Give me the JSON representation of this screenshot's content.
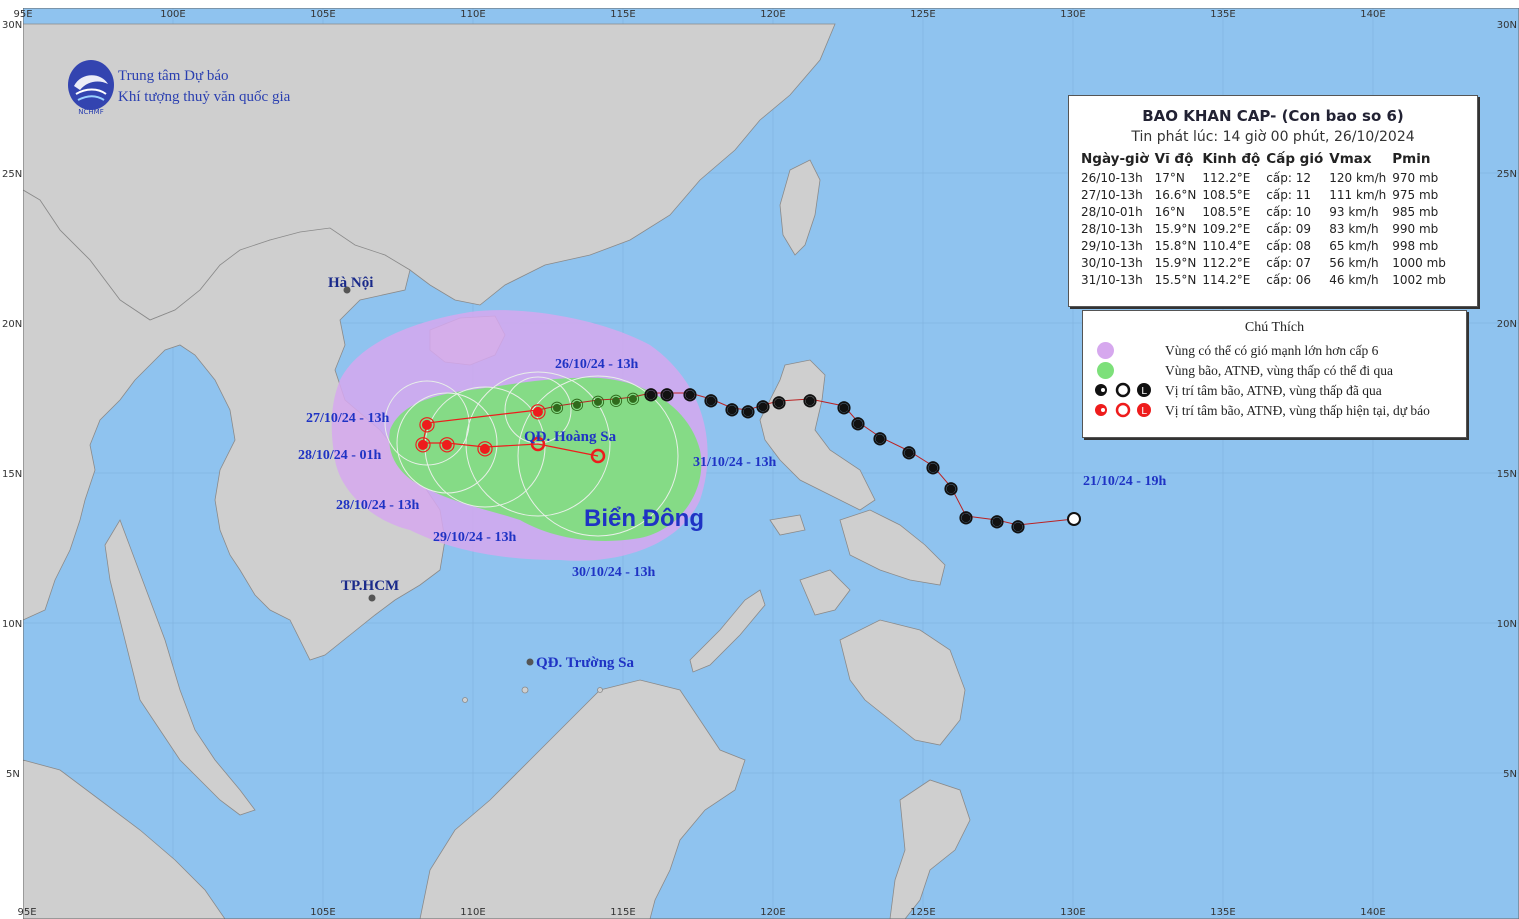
{
  "grid": {
    "lon_labels_top": [
      "95E",
      "100E",
      "105E",
      "110E",
      "115E",
      "120E",
      "125E",
      "130E",
      "135E",
      "140E"
    ],
    "lon_labels_bottom": [
      "95E",
      "105E",
      "110E",
      "115E",
      "120E",
      "125E",
      "130E",
      "135E",
      "140E"
    ],
    "lat_labels": [
      "30N",
      "25N",
      "20N",
      "15N",
      "10N",
      "5N"
    ]
  },
  "agency": {
    "line1": "Trung tâm Dự báo",
    "line2": "Khí tượng thuỷ văn quốc gia",
    "logo_text": "NCHMF"
  },
  "places": {
    "hanoi": "Hà Nội",
    "hcm": "TP.HCM",
    "hoangsa": "QĐ. Hoàng Sa",
    "truongsa": "QĐ. Trường Sa",
    "sea": "Biển Đông"
  },
  "track_labels": {
    "l2610": "26/10/24 - 13h",
    "l2710": "27/10/24 - 13h",
    "l2810a": "28/10/24 - 01h",
    "l2810b": "28/10/24 - 13h",
    "l2910": "29/10/24 - 13h",
    "l3010": "30/10/24 - 13h",
    "l3110": "31/10/24 - 13h",
    "l2110": "21/10/24 - 19h"
  },
  "info": {
    "title": "BAO KHAN CAP- (Con bao so 6)",
    "issued": "Tin phát lúc: 14 giờ 00 phút, 26/10/2024",
    "headers": [
      "Ngày-giờ",
      "Vĩ độ",
      "Kinh độ",
      "Cấp gió",
      "Vmax",
      "Pmin"
    ],
    "rows": [
      [
        "26/10-13h",
        "17°N",
        "112.2°E",
        "cấp: 12",
        "120 km/h",
        "970 mb"
      ],
      [
        "27/10-13h",
        "16.6°N",
        "108.5°E",
        "cấp: 11",
        "111 km/h",
        "975 mb"
      ],
      [
        "28/10-01h",
        "16°N",
        "108.5°E",
        "cấp: 10",
        "93 km/h",
        "985 mb"
      ],
      [
        "28/10-13h",
        "15.9°N",
        "109.2°E",
        "cấp: 09",
        "83 km/h",
        "990 mb"
      ],
      [
        "29/10-13h",
        "15.8°N",
        "110.4°E",
        "cấp: 08",
        "65 km/h",
        "998 mb"
      ],
      [
        "30/10-13h",
        "15.9°N",
        "112.2°E",
        "cấp: 07",
        "56 km/h",
        "1000 mb"
      ],
      [
        "31/10-13h",
        "15.5°N",
        "114.2°E",
        "cấp: 06",
        "46 km/h",
        "1002 mb"
      ]
    ]
  },
  "legend": {
    "title": "Chú Thích",
    "items": [
      "Vùng có thể có gió mạnh lớn hơn cấp 6",
      "Vùng bão, ATNĐ, vùng thấp có thể đi qua",
      "Vị trí tâm bão, ATNĐ, vùng thấp đã qua",
      "Vị trí tâm bão, ATNĐ, vùng thấp hiện tại, dự báo"
    ],
    "symbol_L": "L"
  },
  "colors": {
    "sea": "#8fc3ef",
    "land": "#cfcfcf",
    "strong_wind_zone": "#d6a8ee",
    "storm_zone": "#7de07a",
    "past_track": "#111111",
    "forecast_track": "#ee1c1c",
    "label_blue": "#1f33c4"
  }
}
